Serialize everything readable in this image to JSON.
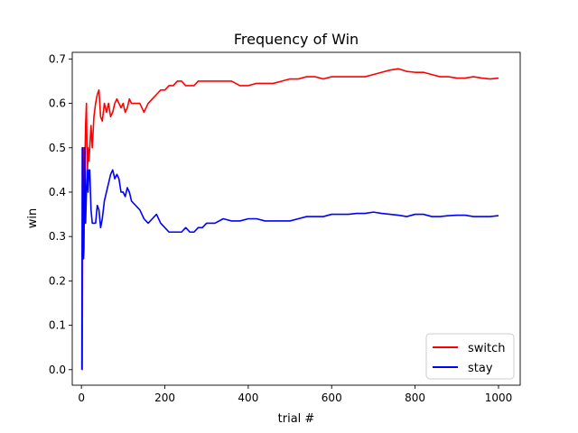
{
  "chart_data": {
    "type": "line",
    "title": "Frequency of Win",
    "xlabel": "trial #",
    "ylabel": "win",
    "xlim": [
      -22,
      1052
    ],
    "ylim": [
      -0.035,
      0.715
    ],
    "x_ticks": [
      0,
      200,
      400,
      600,
      800,
      1000
    ],
    "y_ticks": [
      0.0,
      0.1,
      0.2,
      0.3,
      0.4,
      0.5,
      0.6,
      0.7
    ],
    "x_tick_labels": [
      "0",
      "200",
      "400",
      "600",
      "800",
      "1000"
    ],
    "y_tick_labels": [
      "0.0",
      "0.1",
      "0.2",
      "0.3",
      "0.4",
      "0.5",
      "0.6",
      "0.7"
    ],
    "grid": false,
    "legend_position": "lower-right",
    "series": [
      {
        "name": "switch",
        "color": "#ff0000",
        "x": [
          1,
          2,
          3,
          4,
          5,
          6,
          8,
          10,
          12,
          14,
          16,
          18,
          20,
          23,
          26,
          30,
          34,
          38,
          42,
          46,
          50,
          55,
          60,
          65,
          70,
          75,
          80,
          85,
          90,
          95,
          100,
          105,
          110,
          115,
          120,
          130,
          140,
          150,
          160,
          170,
          180,
          190,
          200,
          210,
          220,
          230,
          240,
          250,
          260,
          270,
          280,
          290,
          300,
          320,
          340,
          360,
          380,
          400,
          420,
          440,
          460,
          480,
          500,
          520,
          540,
          560,
          580,
          600,
          620,
          640,
          660,
          680,
          700,
          720,
          740,
          760,
          780,
          800,
          820,
          840,
          860,
          880,
          900,
          920,
          940,
          960,
          980,
          1000
        ],
        "y": [
          0.0,
          0.0,
          0.33,
          0.25,
          0.4,
          0.5,
          0.45,
          0.55,
          0.6,
          0.43,
          0.5,
          0.47,
          0.5,
          0.55,
          0.5,
          0.57,
          0.6,
          0.62,
          0.63,
          0.57,
          0.56,
          0.6,
          0.58,
          0.6,
          0.57,
          0.58,
          0.6,
          0.61,
          0.6,
          0.59,
          0.6,
          0.58,
          0.59,
          0.61,
          0.6,
          0.6,
          0.6,
          0.58,
          0.6,
          0.61,
          0.62,
          0.63,
          0.63,
          0.64,
          0.64,
          0.65,
          0.65,
          0.64,
          0.64,
          0.64,
          0.65,
          0.65,
          0.65,
          0.65,
          0.65,
          0.65,
          0.64,
          0.64,
          0.645,
          0.645,
          0.645,
          0.65,
          0.655,
          0.655,
          0.66,
          0.66,
          0.655,
          0.66,
          0.66,
          0.66,
          0.66,
          0.66,
          0.665,
          0.67,
          0.675,
          0.678,
          0.672,
          0.67,
          0.67,
          0.665,
          0.66,
          0.66,
          0.657,
          0.657,
          0.66,
          0.657,
          0.655,
          0.657
        ]
      },
      {
        "name": "stay",
        "color": "#0000ff",
        "x": [
          1,
          2,
          3,
          4,
          5,
          6,
          8,
          10,
          12,
          14,
          16,
          18,
          20,
          23,
          26,
          30,
          34,
          38,
          42,
          46,
          50,
          55,
          60,
          65,
          70,
          75,
          80,
          85,
          90,
          95,
          100,
          105,
          110,
          115,
          120,
          130,
          140,
          150,
          160,
          170,
          180,
          190,
          200,
          210,
          220,
          230,
          240,
          250,
          260,
          270,
          280,
          290,
          300,
          320,
          340,
          360,
          380,
          400,
          420,
          440,
          460,
          480,
          500,
          520,
          540,
          560,
          580,
          600,
          620,
          640,
          660,
          680,
          700,
          720,
          740,
          760,
          780,
          800,
          820,
          840,
          860,
          880,
          900,
          920,
          940,
          960,
          980,
          1000
        ],
        "y": [
          0.0,
          0.5,
          0.5,
          0.33,
          0.25,
          0.27,
          0.5,
          0.33,
          0.4,
          0.45,
          0.4,
          0.45,
          0.45,
          0.36,
          0.33,
          0.33,
          0.33,
          0.37,
          0.36,
          0.32,
          0.34,
          0.38,
          0.4,
          0.42,
          0.44,
          0.45,
          0.43,
          0.44,
          0.43,
          0.4,
          0.4,
          0.39,
          0.41,
          0.4,
          0.38,
          0.37,
          0.36,
          0.34,
          0.33,
          0.34,
          0.35,
          0.33,
          0.32,
          0.31,
          0.31,
          0.31,
          0.31,
          0.32,
          0.31,
          0.31,
          0.32,
          0.32,
          0.33,
          0.33,
          0.34,
          0.335,
          0.335,
          0.34,
          0.34,
          0.335,
          0.335,
          0.335,
          0.335,
          0.34,
          0.345,
          0.345,
          0.345,
          0.35,
          0.35,
          0.35,
          0.352,
          0.352,
          0.355,
          0.352,
          0.35,
          0.348,
          0.345,
          0.35,
          0.35,
          0.345,
          0.345,
          0.347,
          0.348,
          0.348,
          0.345,
          0.345,
          0.345,
          0.347
        ]
      }
    ]
  }
}
